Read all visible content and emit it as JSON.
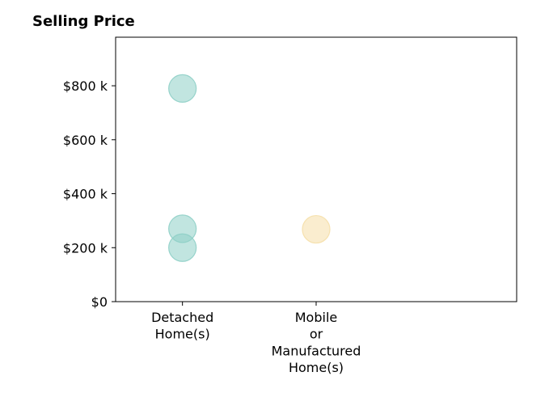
{
  "chart_data": {
    "type": "scatter",
    "title": "Selling Price",
    "xlabel": "",
    "ylabel": "",
    "categories": [
      [
        "Detached",
        "Home(s)"
      ],
      [
        "Mobile",
        "or",
        "Manufactured",
        "Home(s)"
      ]
    ],
    "xlim": [
      -0.5,
      2.5
    ],
    "ylim": [
      0,
      980
    ],
    "yticks": [
      0,
      200,
      400,
      600,
      800
    ],
    "ytick_labels": [
      "$0",
      "$200 k",
      "$400 k",
      "$600 k",
      "$800 k"
    ],
    "grid": false,
    "points": [
      {
        "category": 0,
        "value": 790,
        "color": "#8ecfc6"
      },
      {
        "category": 0,
        "value": 270,
        "color": "#8ecfc6"
      },
      {
        "category": 0,
        "value": 200,
        "color": "#8ecfc6"
      },
      {
        "category": 1,
        "value": 268,
        "color": "#f5dfa8"
      }
    ]
  }
}
